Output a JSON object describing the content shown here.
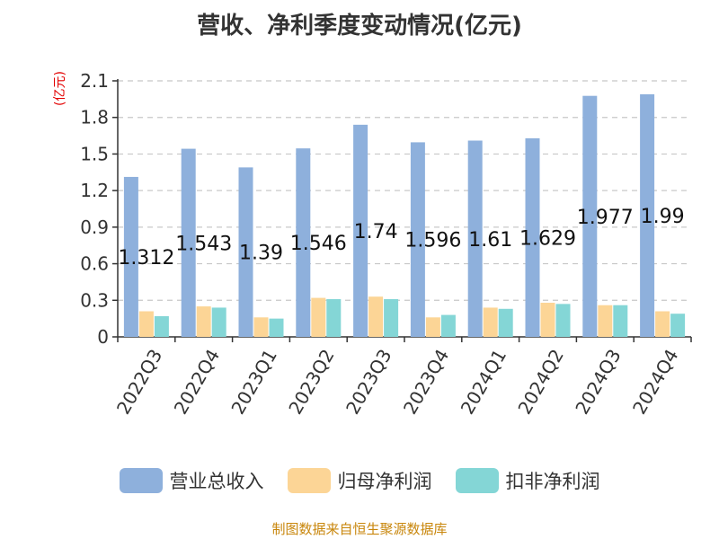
{
  "chart_data": {
    "type": "bar",
    "title": "营收、净利季度变动情况(亿元)",
    "ylabel": "(亿元)",
    "categories": [
      "2022Q3",
      "2022Q4",
      "2023Q1",
      "2023Q2",
      "2023Q3",
      "2023Q4",
      "2024Q1",
      "2024Q2",
      "2024Q3",
      "2024Q4"
    ],
    "ylim": [
      0,
      2.1
    ],
    "yticks": [
      "0",
      "0.3",
      "0.6",
      "0.9",
      "1.2",
      "1.5",
      "1.8",
      "2.1"
    ],
    "grid": true,
    "legend_position": "bottom",
    "series": [
      {
        "name": "营业总收入",
        "color": "#8eb0dc",
        "values": [
          1.312,
          1.543,
          1.39,
          1.546,
          1.74,
          1.596,
          1.61,
          1.629,
          1.977,
          1.99
        ],
        "data_labels": [
          "1.312",
          "1.543",
          "1.39",
          "1.546",
          "1.74",
          "1.596",
          "1.61",
          "1.629",
          "1.977",
          "1.99"
        ]
      },
      {
        "name": "归母净利润",
        "color": "#fcd596",
        "values": [
          0.21,
          0.25,
          0.16,
          0.32,
          0.33,
          0.16,
          0.24,
          0.28,
          0.26,
          0.21
        ]
      },
      {
        "name": "扣非净利润",
        "color": "#84d6d6",
        "values": [
          0.17,
          0.24,
          0.15,
          0.31,
          0.31,
          0.18,
          0.23,
          0.27,
          0.26,
          0.19
        ]
      }
    ]
  },
  "source_text": "制图数据来自恒生聚源数据库"
}
